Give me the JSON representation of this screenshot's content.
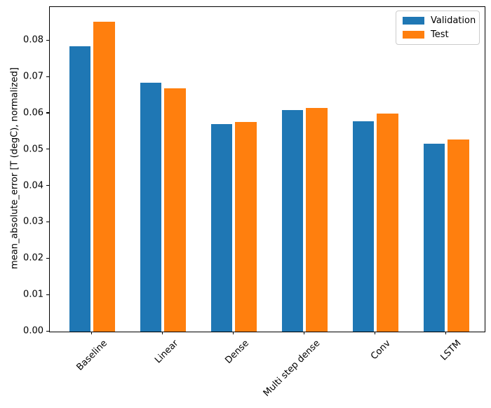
{
  "figure": {
    "background": "#ffffff"
  },
  "chart_data": {
    "type": "bar",
    "title": "",
    "categories": [
      "Baseline",
      "Linear",
      "Dense",
      "Multi step dense",
      "Conv",
      "LSTM"
    ],
    "series": [
      {
        "name": "Validation",
        "color": "#1f77b4",
        "values": [
          0.0785,
          0.0685,
          0.057,
          0.061,
          0.0578,
          0.0517
        ]
      },
      {
        "name": "Test",
        "color": "#ff7f0e",
        "values": [
          0.0852,
          0.067,
          0.0576,
          0.0615,
          0.0599,
          0.0528
        ]
      }
    ],
    "xlabel": "",
    "ylabel": "mean_absolute_error [T (degC), normalized]",
    "ylim": [
      0,
      0.0893
    ],
    "yticks": [
      0.0,
      0.01,
      0.02,
      0.03,
      0.04,
      0.05,
      0.06,
      0.07,
      0.08
    ],
    "ytick_decimals": 2,
    "xtick_rotation": 45,
    "grid": false,
    "legend": {
      "position": "upper right",
      "entries": [
        "Validation",
        "Test"
      ]
    }
  }
}
